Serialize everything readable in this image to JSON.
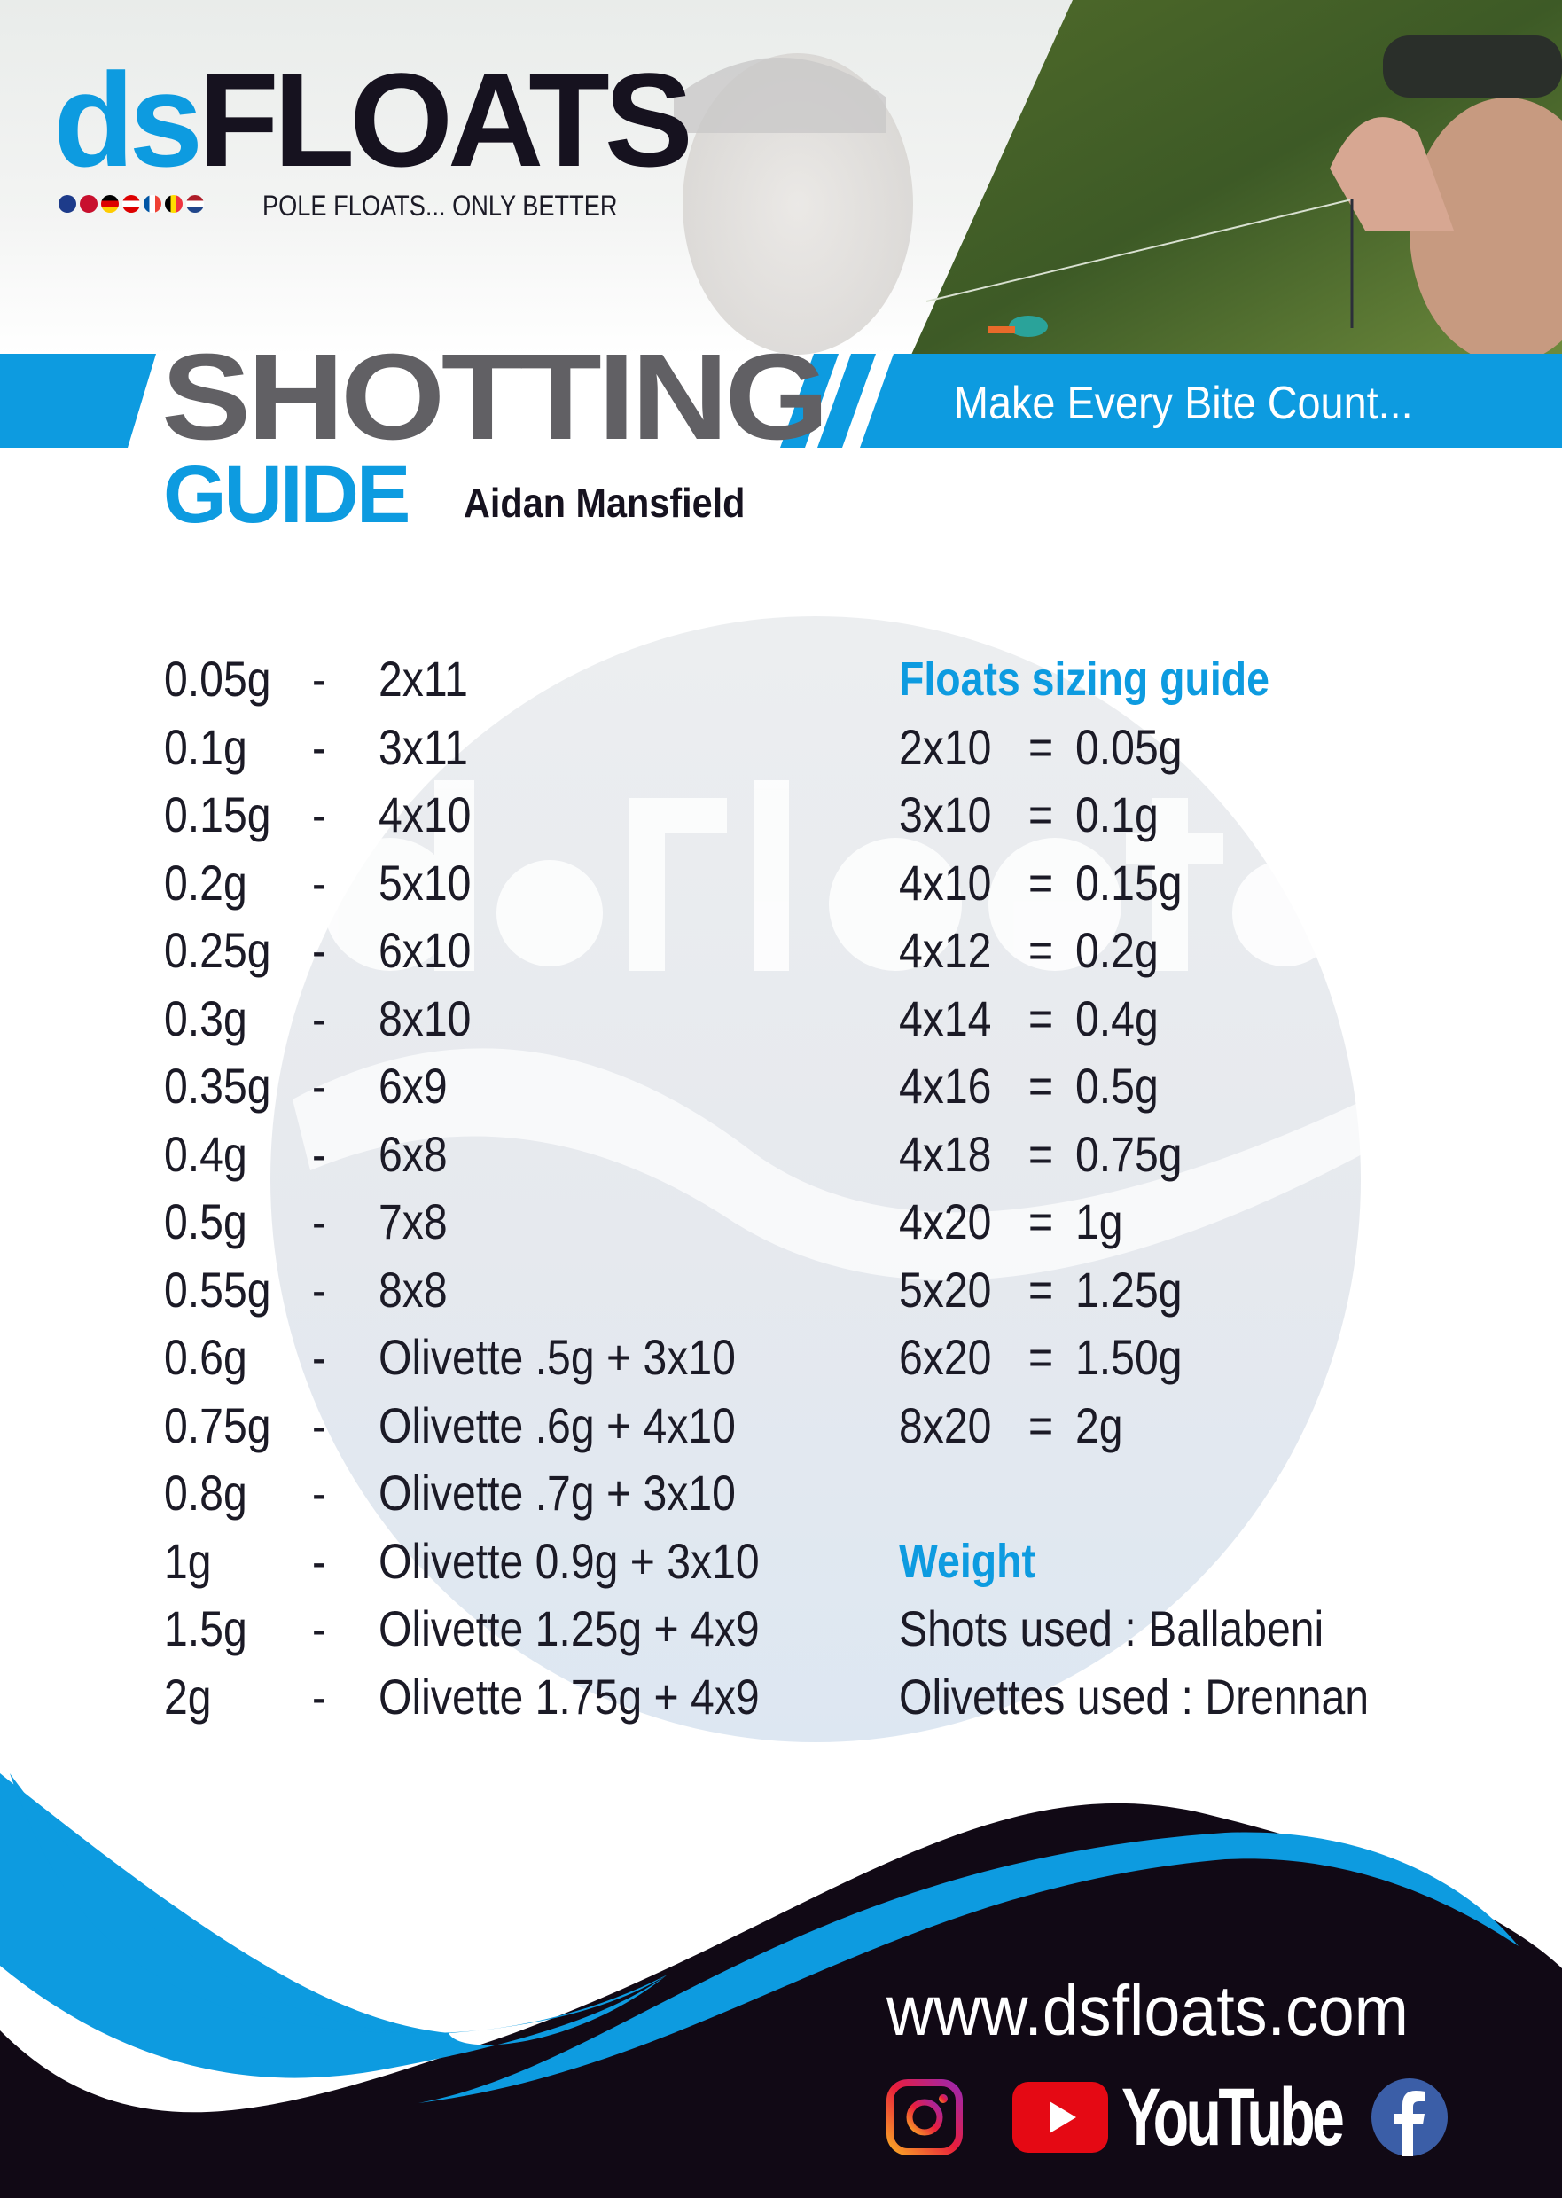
{
  "brand": {
    "logo_ds": "ds",
    "logo_floats": "FLOATS",
    "tagline": "POLE FLOATS... ONLY BETTER",
    "accent_color": "#0d9be0",
    "dark_color": "#16121f"
  },
  "header": {
    "title": "SHOTTING",
    "subtitle": "GUIDE",
    "author": "Aidan Mansfield",
    "slogan": "Make Every Bite Count..."
  },
  "shotting_table": [
    {
      "weight": "0.05g",
      "sep": "-",
      "shot": "2x11"
    },
    {
      "weight": "0.1g",
      "sep": "-",
      "shot": "3x11"
    },
    {
      "weight": "0.15g",
      "sep": "-",
      "shot": "4x10"
    },
    {
      "weight": "0.2g",
      "sep": "-",
      "shot": "5x10"
    },
    {
      "weight": "0.25g",
      "sep": "-",
      "shot": "6x10"
    },
    {
      "weight": "0.3g",
      "sep": "-",
      "shot": "8x10"
    },
    {
      "weight": "0.35g",
      "sep": "-",
      "shot": "6x9"
    },
    {
      "weight": "0.4g",
      "sep": "-",
      "shot": "6x8"
    },
    {
      "weight": "0.5g",
      "sep": "-",
      "shot": "7x8"
    },
    {
      "weight": "0.55g",
      "sep": "-",
      "shot": "8x8"
    },
    {
      "weight": "0.6g",
      "sep": "-",
      "shot": "Olivette .5g + 3x10"
    },
    {
      "weight": "0.75g",
      "sep": "-",
      "shot": "Olivette .6g + 4x10"
    },
    {
      "weight": "0.8g",
      "sep": "-",
      "shot": "Olivette .7g + 3x10"
    },
    {
      "weight": "1g",
      "sep": "-",
      "shot": "Olivette 0.9g + 3x10"
    },
    {
      "weight": "1.5g",
      "sep": "-",
      "shot": "Olivette 1.25g + 4x9"
    },
    {
      "weight": "2g",
      "sep": "-",
      "shot": "Olivette 1.75g + 4x9"
    }
  ],
  "floats_guide": {
    "heading": "Floats sizing guide",
    "rows": [
      {
        "size": "2x10",
        "eq": "=",
        "weight": "0.05g"
      },
      {
        "size": "3x10",
        "eq": "=",
        "weight": "0.1g"
      },
      {
        "size": "4x10",
        "eq": "=",
        "weight": "0.15g"
      },
      {
        "size": "4x12",
        "eq": "=",
        "weight": "0.2g"
      },
      {
        "size": "4x14",
        "eq": "=",
        "weight": "0.4g"
      },
      {
        "size": "4x16",
        "eq": "=",
        "weight": "0.5g"
      },
      {
        "size": "4x18",
        "eq": "=",
        "weight": "0.75g"
      },
      {
        "size": "4x20",
        "eq": "=",
        "weight": "1g"
      },
      {
        "size": "5x20",
        "eq": "=",
        "weight": "1.25g"
      },
      {
        "size": "6x20",
        "eq": "=",
        "weight": "1.50g"
      },
      {
        "size": "8x20",
        "eq": "=",
        "weight": "2g"
      }
    ]
  },
  "weight_info": {
    "heading": "Weight",
    "shots": "Shots used : Ballabeni",
    "olivettes": "Olivettes used : Drennan"
  },
  "footer": {
    "url": "www.dsfloats.com",
    "youtube_label": "YouTube",
    "social_icons": [
      "instagram-icon",
      "youtube-icon",
      "facebook-icon"
    ]
  }
}
